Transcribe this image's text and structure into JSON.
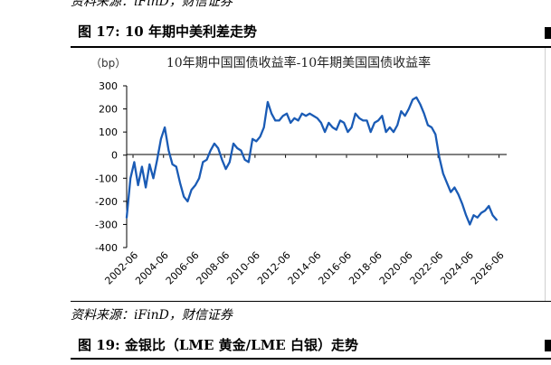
{
  "top_source": "资料来源：iFinD，财信证券",
  "figure17": {
    "title": "图 17:  10 年期中美利差走势"
  },
  "figure19": {
    "source": "资料来源：iFinD，财信证券",
    "title": "图 19:  金银比（LME 黄金/LME 白银）走势"
  },
  "chart_data": {
    "type": "line",
    "title": "10年期中国国债收益率-10年期美国国债收益率",
    "unit_label": "（bp）",
    "ylim": [
      -400,
      300
    ],
    "yticks": [
      300,
      200,
      100,
      0,
      -100,
      -200,
      -300,
      -400
    ],
    "xlim": [
      "2002-01",
      "2026-12"
    ],
    "xticks": [
      "2002-06",
      "2004-06",
      "2006-06",
      "2008-06",
      "2010-06",
      "2012-06",
      "2014-06",
      "2016-06",
      "2018-06",
      "2020-06",
      "2022-06",
      "2024-06",
      "2026-06"
    ],
    "grid": false,
    "legend": "none",
    "color": "#1a5bb5",
    "series": [
      {
        "x": [
          "2002-01",
          "2002-04",
          "2002-07",
          "2002-10",
          "2003-01",
          "2003-04",
          "2003-07",
          "2003-10",
          "2004-01",
          "2004-04",
          "2004-07",
          "2004-10",
          "2005-01",
          "2005-04",
          "2005-07",
          "2005-10",
          "2006-01",
          "2006-04",
          "2006-07",
          "2006-10",
          "2007-01",
          "2007-04",
          "2007-07",
          "2007-10",
          "2008-01",
          "2008-04",
          "2008-07",
          "2008-10",
          "2009-01",
          "2009-04",
          "2009-07",
          "2009-10",
          "2010-01",
          "2010-04",
          "2010-07",
          "2010-10",
          "2011-01",
          "2011-04",
          "2011-07",
          "2011-10",
          "2012-01",
          "2012-04",
          "2012-07",
          "2012-10",
          "2013-01",
          "2013-04",
          "2013-07",
          "2013-10",
          "2014-01",
          "2014-04",
          "2014-07",
          "2014-10",
          "2015-01",
          "2015-04",
          "2015-07",
          "2015-10",
          "2016-01",
          "2016-04",
          "2016-07",
          "2016-10",
          "2017-01",
          "2017-04",
          "2017-07",
          "2017-10",
          "2018-01",
          "2018-04",
          "2018-07",
          "2018-10",
          "2019-01",
          "2019-04",
          "2019-07",
          "2019-10",
          "2020-01",
          "2020-04",
          "2020-07",
          "2020-10",
          "2021-01",
          "2021-04",
          "2021-07",
          "2021-10",
          "2022-01",
          "2022-04",
          "2022-07",
          "2022-10",
          "2023-01",
          "2023-04",
          "2023-07",
          "2023-10",
          "2024-01",
          "2024-04",
          "2024-07",
          "2024-10",
          "2025-01",
          "2025-04",
          "2025-07",
          "2025-10",
          "2026-01",
          "2026-04"
        ],
        "values": [
          -270,
          -100,
          -30,
          -130,
          -50,
          -140,
          -40,
          -100,
          -20,
          70,
          120,
          20,
          -40,
          -50,
          -120,
          -180,
          -200,
          -150,
          -130,
          -100,
          -30,
          -20,
          20,
          50,
          30,
          -20,
          -60,
          -30,
          50,
          30,
          20,
          -20,
          -30,
          70,
          60,
          80,
          120,
          230,
          180,
          150,
          150,
          170,
          180,
          140,
          160,
          150,
          180,
          170,
          180,
          170,
          160,
          140,
          100,
          140,
          120,
          110,
          150,
          140,
          100,
          120,
          180,
          160,
          150,
          150,
          100,
          140,
          150,
          170,
          100,
          120,
          100,
          130,
          190,
          170,
          200,
          240,
          250,
          220,
          180,
          130,
          120,
          90,
          -10,
          -80,
          -120,
          -160,
          -140,
          -170,
          -210,
          -260,
          -300,
          -260,
          -270,
          -250,
          -240,
          -220,
          -260,
          -280
        ]
      }
    ]
  }
}
